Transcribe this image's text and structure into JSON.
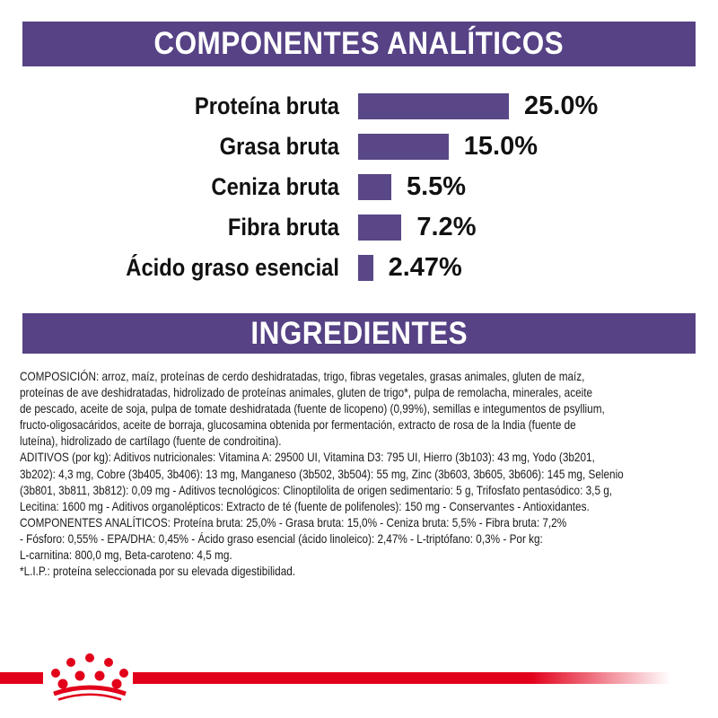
{
  "colors": {
    "header_purple": "#564285",
    "bar_purple": "#594787",
    "accent_red": "#E2001A",
    "text": "#111111",
    "background": "#FFFFFF"
  },
  "sections": {
    "analytical": {
      "title": "COMPONENTES ANALÍTICOS"
    },
    "ingredients": {
      "title": "INGREDIENTES",
      "lines": [
        "COMPOSICIÓN: arroz, maíz, proteínas de cerdo deshidratadas, trigo, fibras vegetales, grasas animales, gluten de maíz,",
        "proteínas de ave deshidratadas, hidrolizado de proteínas animales, gluten de trigo*, pulpa de remolacha, minerales, aceite",
        "de pescado, aceite de soja, pulpa de tomate deshidratada (fuente de licopeno) (0,99%), semillas e integumentos de psyllium,",
        "fructo-oligosacáridos, aceite de borraja, glucosamina obtenida por fermentación, extracto de rosa de la India (fuente de",
        "luteína), hidrolizado de cartílago (fuente de condroitina).",
        "ADITIVOS (por kg): Aditivos nutricionales: Vitamina A: 29500 UI, Vitamina D3: 795 UI, Hierro (3b103): 43 mg, Yodo (3b201,",
        "3b202): 4,3 mg, Cobre (3b405, 3b406): 13 mg, Manganeso (3b502, 3b504): 55 mg, Zinc (3b603, 3b605, 3b606): 145 mg, Selenio",
        "(3b801, 3b811, 3b812): 0,09 mg - Aditivos tecnológicos: Clinoptilolita de origen sedimentario: 5 g, Trifosfato pentasódico: 3,5 g,",
        "Lecitina: 1600 mg - Aditivos organolépticos: Extracto de té (fuente de polifenoles): 150 mg - Conservantes - Antioxidantes.",
        "COMPONENTES ANALÍTICOS: Proteína bruta: 25,0% - Grasa bruta: 15,0% - Ceniza bruta: 5,5% - Fibra bruta: 7,2%",
        "- Fósforo: 0,55% - EPA/DHA: 0,45% - Ácido graso esencial (ácido linoleico): 2,47% - L-triptófano: 0,3% - Por kg:",
        "L-carnitina: 800,0 mg, Beta-caroteno: 4,5 mg.",
        "*L.I.P.: proteína seleccionada por su elevada digestibilidad."
      ]
    }
  },
  "chart_data": {
    "type": "bar",
    "orientation": "horizontal",
    "title": "COMPONENTES ANALÍTICOS",
    "categories": [
      "Proteína bruta",
      "Grasa bruta",
      "Ceniza bruta",
      "Fibra bruta",
      "Ácido graso esencial"
    ],
    "values": [
      25.0,
      15.0,
      5.5,
      7.2,
      2.47
    ],
    "value_labels": [
      "25.0%",
      "15.0%",
      "5.5%",
      "7.2%",
      "2.47%"
    ],
    "unit": "%",
    "xlim": [
      0,
      25
    ],
    "bar_color": "#594787",
    "grid": false,
    "legend": false,
    "value_label_position": "right-of-bar"
  },
  "footer": {
    "brand_logo": "royal-canin-crown",
    "accent_color": "#E2001A"
  }
}
